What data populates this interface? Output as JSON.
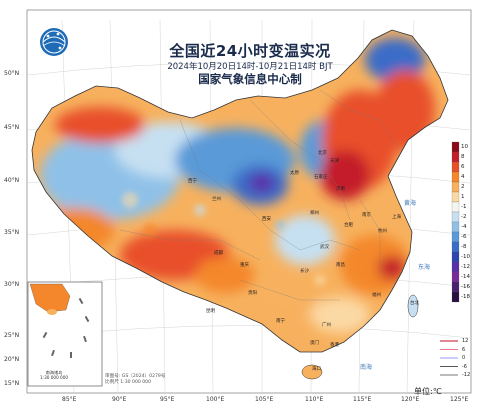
{
  "header": {
    "title": "全国近24小时变温实况",
    "subtitle": "2024年10月20日14时-10月21日14时 BJT",
    "issuer": "国家气象信息中心制"
  },
  "axes": {
    "lat_labels": [
      "50°N",
      "45°N",
      "40°N",
      "35°N",
      "30°N",
      "25°N",
      "20°N",
      "15°N"
    ],
    "lon_labels": [
      "85°E",
      "90°E",
      "95°E",
      "100°E",
      "105°E",
      "110°E",
      "115°E",
      "120°E",
      "125°E"
    ]
  },
  "legend": {
    "ticks": [
      "10",
      "8",
      "6",
      "4",
      "2",
      "1",
      "-1",
      "-2",
      "-4",
      "-6",
      "-8",
      "-10",
      "-12",
      "-14",
      "-16",
      "-18"
    ],
    "colors": [
      "#8b0a1a",
      "#c41e2a",
      "#e8502a",
      "#f4872b",
      "#f7b15e",
      "#fbd9a4",
      "#f5f5f0",
      "#c6e0f2",
      "#8fc1e8",
      "#5a9ad8",
      "#3a6cc8",
      "#2f45b0",
      "#5a2fa8",
      "#7a2a98",
      "#4a2070",
      "#2a1040"
    ],
    "isolines": [
      {
        "label": "12",
        "color": "#c8102e"
      },
      {
        "label": "6",
        "color": "#f07a8a"
      },
      {
        "label": "0",
        "color": "#9999ff"
      },
      {
        "label": "-6",
        "color": "#555555"
      },
      {
        "label": "-12",
        "color": "#777777"
      }
    ],
    "unit": "单位:℃"
  },
  "credit": [
    "审图号: GS（2024）0279号",
    "比例尺 1:30 000 000"
  ],
  "inset": {
    "caption": [
      "南海诸岛",
      "1:30 000 000"
    ]
  },
  "sea_labels": [
    "黄海",
    "东海",
    "南海"
  ],
  "place_labels": [
    "北京",
    "天津",
    "石家庄",
    "太原",
    "济南",
    "郑州",
    "西安",
    "兰州",
    "西宁",
    "成都",
    "重庆",
    "武汉",
    "长沙",
    "南昌",
    "杭州",
    "上海",
    "南京",
    "合肥",
    "福州",
    "广州",
    "南宁",
    "贵阳",
    "昆明",
    "台北",
    "香港",
    "澳门",
    "海口"
  ]
}
